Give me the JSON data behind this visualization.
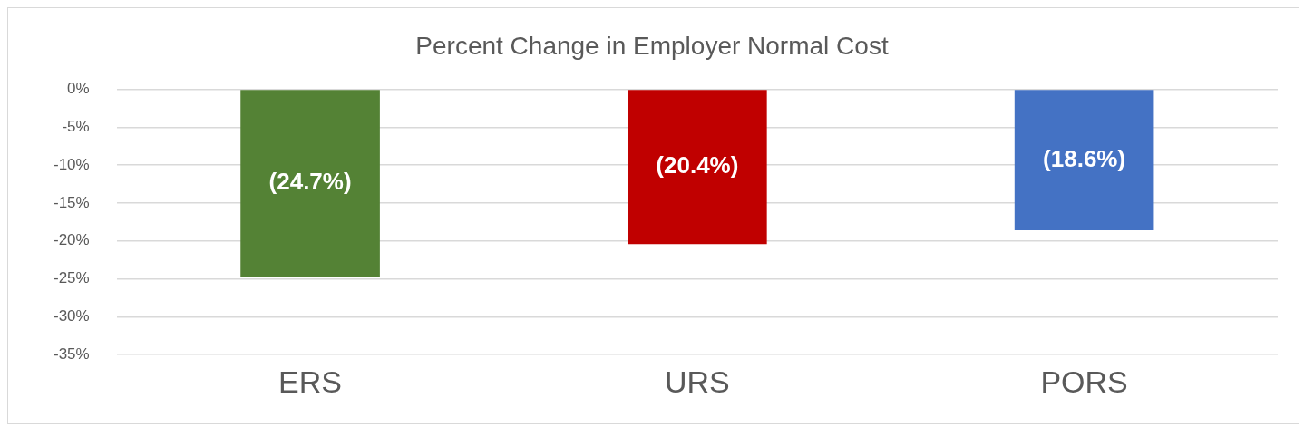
{
  "chart_data": {
    "type": "bar",
    "title": "Percent Change in Employer Normal Cost",
    "categories": [
      "ERS",
      "URS",
      "PORS"
    ],
    "values": [
      -24.7,
      -20.4,
      -18.6
    ],
    "colors": [
      "#548235",
      "#c00000",
      "#4472c4"
    ],
    "value_labels": [
      "(24.7%)",
      "(20.4%)",
      "(18.6%)"
    ],
    "ylim": [
      -35,
      0
    ],
    "yticks": [
      {
        "value": 0,
        "label": "0%"
      },
      {
        "value": -5,
        "label": "-5%"
      },
      {
        "value": -10,
        "label": "-10%"
      },
      {
        "value": -15,
        "label": "-15%"
      },
      {
        "value": -20,
        "label": "-20%"
      },
      {
        "value": -25,
        "label": "-25%"
      },
      {
        "value": -30,
        "label": "-30%"
      },
      {
        "value": -35,
        "label": "-35%"
      }
    ],
    "grid": "y",
    "legend": false
  }
}
